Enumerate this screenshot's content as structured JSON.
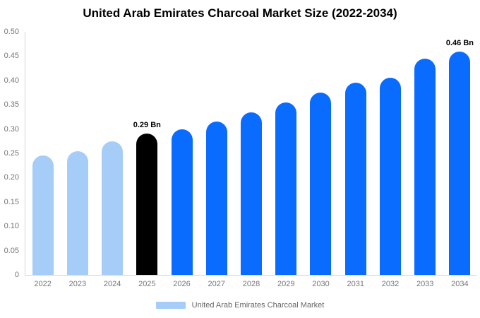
{
  "chart_data": {
    "type": "bar",
    "title": "United Arab Emirates Charcoal Market Size (2022-2034)",
    "xlabel": "",
    "ylabel": "",
    "ylim": [
      0,
      0.5
    ],
    "ytick_step": 0.05,
    "ytick_labels": [
      "0.50",
      "0.45",
      "0.40",
      "0.35",
      "0.30",
      "0.25",
      "0.20",
      "0.15",
      "0.10",
      "0.05",
      "0"
    ],
    "categories": [
      "2022",
      "2023",
      "2024",
      "2025",
      "2026",
      "2027",
      "2028",
      "2029",
      "2030",
      "2031",
      "2032",
      "2033",
      "2034"
    ],
    "values": [
      0.245,
      0.255,
      0.275,
      0.29,
      0.3,
      0.315,
      0.335,
      0.355,
      0.375,
      0.395,
      0.405,
      0.445,
      0.46
    ],
    "unit": "Bn",
    "bar_colors": [
      "#a5cdf8",
      "#a5cdf8",
      "#a5cdf8",
      "#000000",
      "#0a6cff",
      "#0a6cff",
      "#0a6cff",
      "#0a6cff",
      "#0a6cff",
      "#0a6cff",
      "#0a6cff",
      "#0a6cff",
      "#0a6cff"
    ],
    "annotations": [
      {
        "index": 3,
        "text": "0.29 Bn"
      },
      {
        "index": 12,
        "text": "0.46 Bn"
      }
    ],
    "grid": false,
    "legend": {
      "position": "bottom-center",
      "label": "United Arab Emirates Charcoal Market",
      "swatch_color": "#a5cdf8"
    },
    "colors": {
      "historical": "#a5cdf8",
      "base_year": "#000000",
      "forecast": "#0a6cff",
      "axis_line": "#d6d6d6",
      "tick_text": "#757575",
      "legend_text": "#666666"
    }
  }
}
